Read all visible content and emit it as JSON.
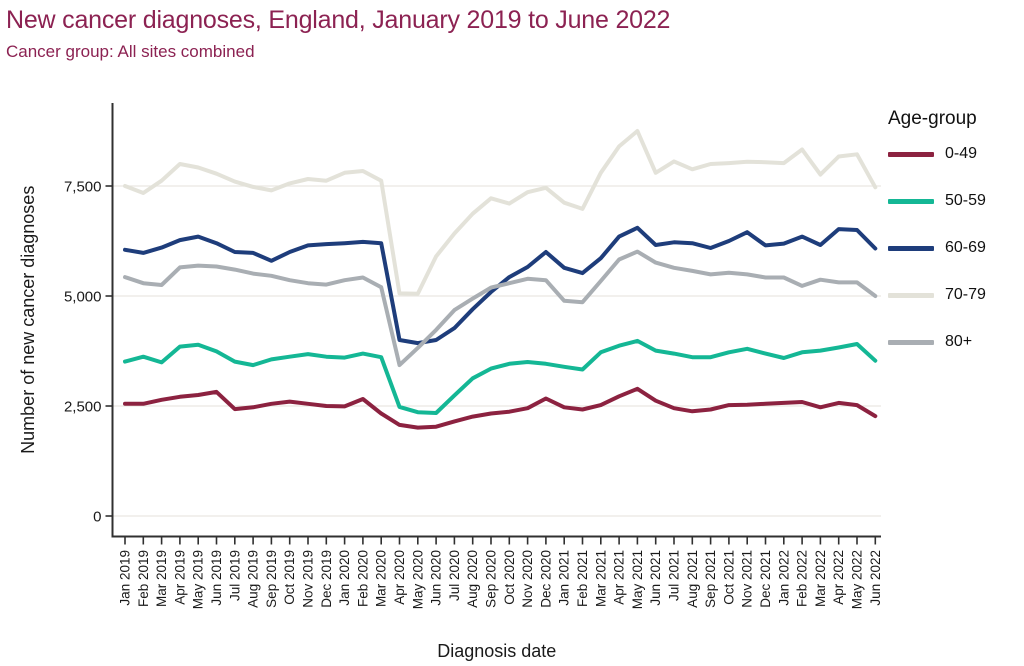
{
  "title": "New cancer diagnoses, England, January 2019 to June 2022",
  "subtitle": "Cancer group: All sites combined",
  "colors": {
    "title_text": "#8c2252",
    "axis_text": "#1a1a1a",
    "axis_line": "#303030",
    "gridline": "#eae8e2"
  },
  "legend": {
    "title": "Age-group",
    "entries": [
      {
        "label": "0-49",
        "color": "#8c2240"
      },
      {
        "label": "50-59",
        "color": "#14b795"
      },
      {
        "label": "60-69",
        "color": "#1e3d7b"
      },
      {
        "label": "70-79",
        "color": "#e3e2d9"
      },
      {
        "label": "80+",
        "color": "#a9aeb3"
      }
    ]
  },
  "chart_data": {
    "type": "line",
    "title": "New cancer diagnoses, England, January 2019 to June 2022",
    "subtitle": "Cancer group: All sites combined",
    "xlabel": "Diagnosis date",
    "ylabel": "Number of new cancer diagnoses",
    "ylim": [
      0,
      9000
    ],
    "yticks": [
      0,
      2500,
      5000,
      7500
    ],
    "ytick_labels": [
      "0",
      "2,500",
      "5,000",
      "7,500"
    ],
    "grid": true,
    "legend_position": "right",
    "x": [
      "Jan 2019",
      "Feb 2019",
      "Mar 2019",
      "Apr 2019",
      "May 2019",
      "Jun 2019",
      "Jul 2019",
      "Aug 2019",
      "Sep 2019",
      "Oct 2019",
      "Nov 2019",
      "Dec 2019",
      "Jan 2020",
      "Feb 2020",
      "Mar 2020",
      "Apr 2020",
      "May 2020",
      "Jun 2020",
      "Jul 2020",
      "Aug 2020",
      "Sep 2020",
      "Oct 2020",
      "Nov 2020",
      "Dec 2020",
      "Jan 2021",
      "Feb 2021",
      "Mar 2021",
      "Apr 2021",
      "May 2021",
      "Jun 2021",
      "Jul 2021",
      "Aug 2021",
      "Sep 2021",
      "Oct 2021",
      "Nov 2021",
      "Dec 2021",
      "Jan 2022",
      "Feb 2022",
      "Mar 2022",
      "Apr 2022",
      "May 2022",
      "Jun 2022"
    ],
    "series": [
      {
        "name": "0-49",
        "color": "#8c2240",
        "values": [
          2550,
          2550,
          2640,
          2710,
          2750,
          2820,
          2430,
          2470,
          2550,
          2600,
          2550,
          2500,
          2490,
          2660,
          2330,
          2070,
          2010,
          2030,
          2150,
          2260,
          2330,
          2370,
          2450,
          2670,
          2470,
          2420,
          2520,
          2720,
          2890,
          2620,
          2450,
          2380,
          2420,
          2520,
          2530,
          2550,
          2570,
          2590,
          2470,
          2570,
          2520,
          2270
        ]
      },
      {
        "name": "50-59",
        "color": "#14b795",
        "values": [
          3510,
          3620,
          3490,
          3850,
          3890,
          3740,
          3510,
          3430,
          3560,
          3620,
          3680,
          3620,
          3600,
          3690,
          3610,
          2480,
          2360,
          2340,
          2740,
          3130,
          3350,
          3460,
          3500,
          3460,
          3390,
          3330,
          3720,
          3870,
          3980,
          3760,
          3690,
          3610,
          3610,
          3720,
          3800,
          3690,
          3590,
          3720,
          3760,
          3830,
          3910,
          3530
        ]
      },
      {
        "name": "60-69",
        "color": "#1e3d7b",
        "values": [
          6050,
          5980,
          6100,
          6270,
          6350,
          6200,
          6000,
          5980,
          5800,
          6000,
          6150,
          6180,
          6200,
          6230,
          6200,
          4000,
          3930,
          4000,
          4270,
          4700,
          5090,
          5430,
          5660,
          6000,
          5640,
          5520,
          5860,
          6350,
          6550,
          6160,
          6220,
          6200,
          6090,
          6250,
          6450,
          6150,
          6190,
          6350,
          6160,
          6520,
          6500,
          6080
        ]
      },
      {
        "name": "70-79",
        "color": "#e3e2d9",
        "values": [
          7500,
          7340,
          7620,
          8000,
          7920,
          7780,
          7600,
          7480,
          7400,
          7560,
          7660,
          7620,
          7800,
          7840,
          7620,
          5060,
          5050,
          5900,
          6420,
          6870,
          7220,
          7100,
          7360,
          7460,
          7120,
          6980,
          7800,
          8400,
          8750,
          7800,
          8060,
          7880,
          8000,
          8020,
          8050,
          8040,
          8020,
          8330,
          7760,
          8170,
          8220,
          7470
        ]
      },
      {
        "name": "80+",
        "color": "#a9aeb3",
        "values": [
          5430,
          5290,
          5250,
          5650,
          5690,
          5670,
          5600,
          5510,
          5460,
          5360,
          5290,
          5260,
          5360,
          5420,
          5200,
          3430,
          3820,
          4230,
          4680,
          4940,
          5190,
          5290,
          5390,
          5360,
          4890,
          4860,
          5340,
          5830,
          6010,
          5760,
          5640,
          5570,
          5490,
          5530,
          5490,
          5420,
          5420,
          5230,
          5370,
          5310,
          5310,
          5000
        ]
      }
    ]
  }
}
